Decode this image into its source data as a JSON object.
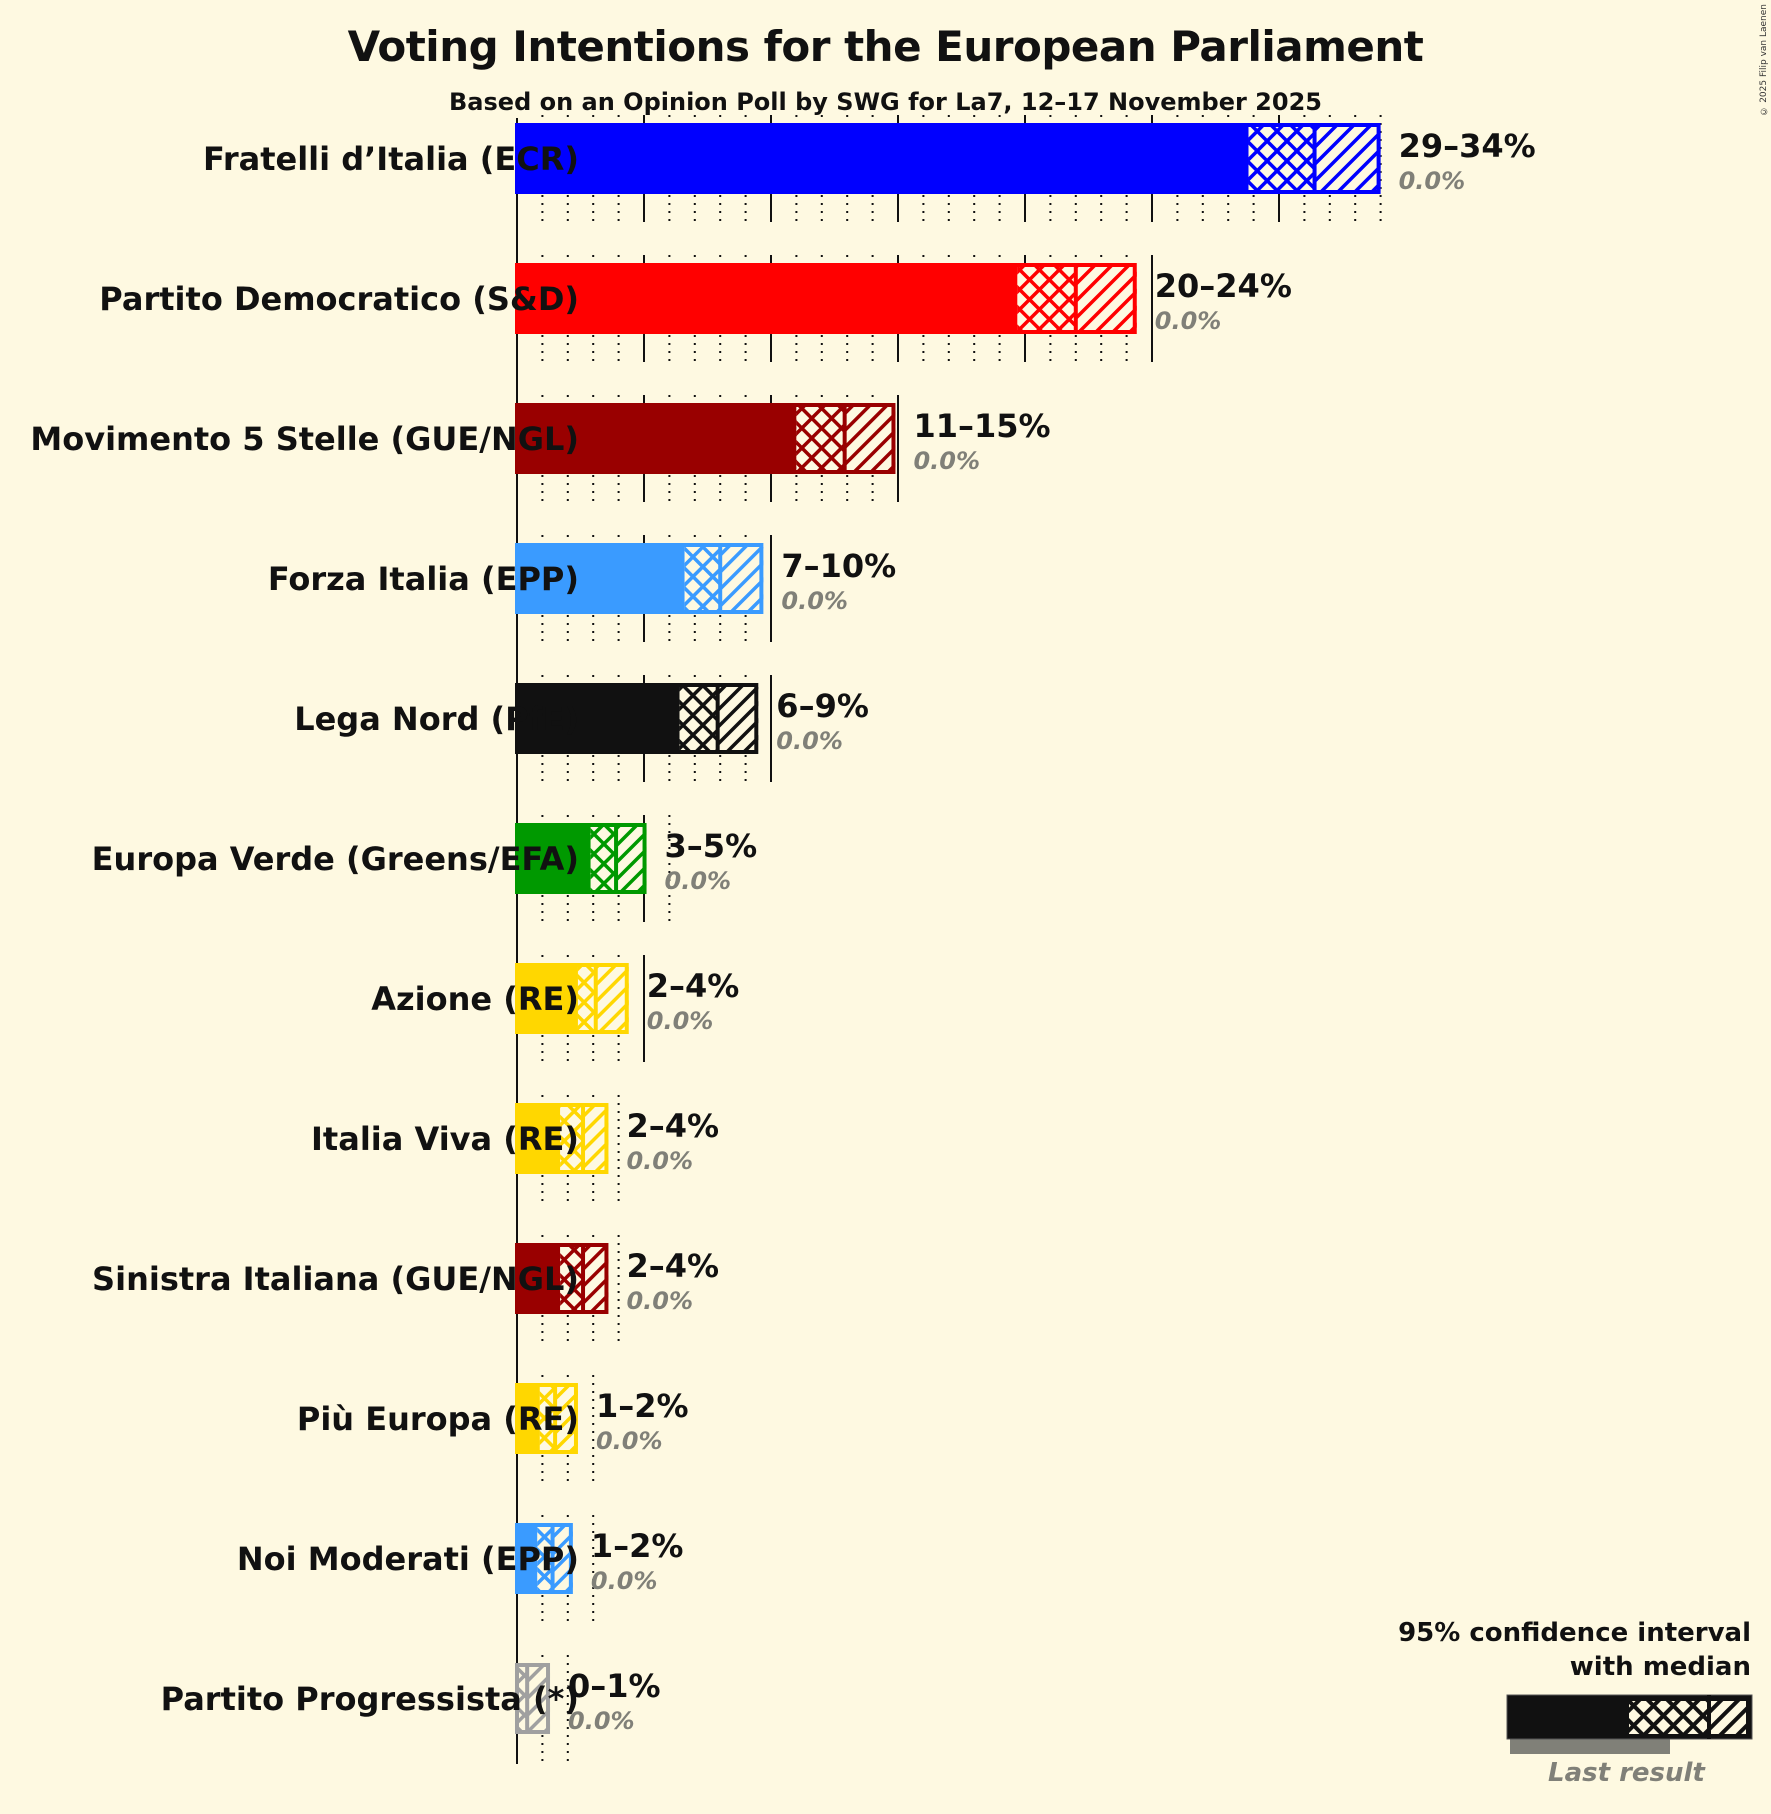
{
  "header": {
    "title": "Voting Intentions for the European Parliament",
    "subtitle": "Based on an Opinion Poll by SWG for La7, 12–17 November 2025",
    "credit": "© 2025 Filip van Laenen"
  },
  "legend": {
    "title_line1": "95% confidence interval",
    "title_line2": "with median",
    "last_result": "Last result"
  },
  "chart_data": {
    "type": "bar",
    "orientation": "horizontal",
    "title": "Voting Intentions for the European Parliament",
    "subtitle": "Based on an Opinion Poll by SWG for La7, 12–17 November 2025",
    "xlabel": "",
    "ylabel": "",
    "unit": "%",
    "xlim": [
      0,
      35
    ],
    "grid": {
      "minor_step": 1,
      "major_step": 5
    },
    "legend_position": "bottom-right",
    "categories": [
      "Fratelli d’Italia (ECR)",
      "Partito Democratico (S&D)",
      "Movimento 5 Stelle (GUE/NGL)",
      "Forza Italia (EPP)",
      "Lega Nord (PfE)",
      "Europa Verde (Greens/EFA)",
      "Azione (RE)",
      "Italia Viva (RE)",
      "Sinistra Italiana (GUE/NGL)",
      "Più Europa (RE)",
      "Noi Moderati (EPP)",
      "Partito Progressista (*)"
    ],
    "series": [
      {
        "name": "CI lower (95%)",
        "values": [
          28.8,
          19.7,
          11.0,
          6.6,
          6.4,
          2.9,
          2.4,
          1.7,
          1.7,
          0.9,
          0.8,
          0.0
        ]
      },
      {
        "name": "Median",
        "values": [
          31.4,
          22.0,
          12.9,
          8.0,
          7.9,
          3.9,
          3.1,
          2.6,
          2.6,
          1.5,
          1.4,
          0.4
        ]
      },
      {
        "name": "CI upper (95%)",
        "values": [
          34.0,
          24.4,
          14.9,
          9.7,
          9.5,
          5.1,
          4.4,
          3.6,
          3.6,
          2.4,
          2.2,
          1.3
        ]
      },
      {
        "name": "Last result",
        "values": [
          0.0,
          0.0,
          0.0,
          0.0,
          0.0,
          0.0,
          0.0,
          0.0,
          0.0,
          0.0,
          0.0,
          0.0
        ]
      }
    ],
    "range_labels": [
      "29–34%",
      "20–24%",
      "11–15%",
      "7–10%",
      "6–9%",
      "3–5%",
      "2–4%",
      "2–4%",
      "2–4%",
      "1–2%",
      "1–2%",
      "0–1%"
    ],
    "last_result_labels": [
      "0.0%",
      "0.0%",
      "0.0%",
      "0.0%",
      "0.0%",
      "0.0%",
      "0.0%",
      "0.0%",
      "0.0%",
      "0.0%",
      "0.0%",
      "0.0%"
    ],
    "colors": [
      "#0000FF",
      "#FF0000",
      "#990000",
      "#3A9BFF",
      "#111111",
      "#009900",
      "#FFD700",
      "#FFD700",
      "#990000",
      "#FFD700",
      "#3A9BFF",
      "#A0A0A0"
    ],
    "legend": [
      "95% confidence interval with median",
      "Last result"
    ]
  }
}
